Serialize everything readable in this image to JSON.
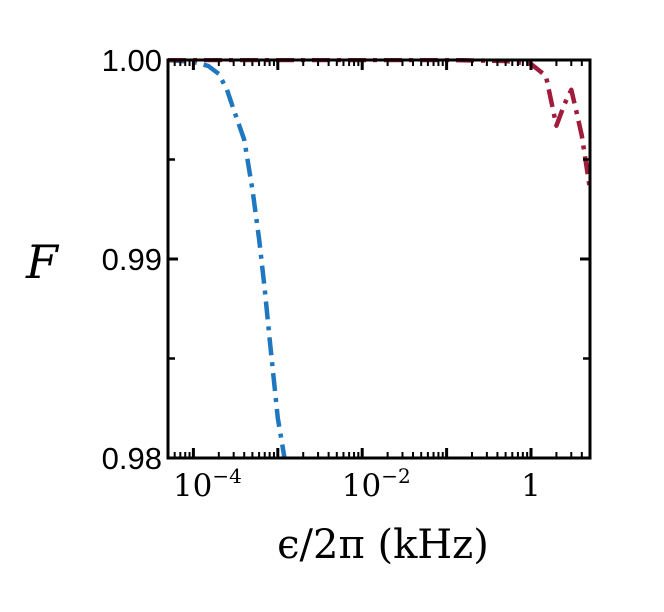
{
  "chart_data": {
    "type": "line",
    "xscale": "log",
    "xlim": [
      5e-05,
      5
    ],
    "ylim": [
      0.98,
      1.0
    ],
    "xlabel": "ϵ/2π (kHz)",
    "ylabel": "F",
    "grid": false,
    "x_ticks": [
      {
        "value": 0.0001,
        "base": "10",
        "exp": "−4"
      },
      {
        "value": 0.01,
        "base": "10",
        "exp": "−2"
      },
      {
        "value": 1,
        "base": "1",
        "exp": ""
      }
    ],
    "y_ticks": [
      {
        "value": 0.98,
        "label": "0.98"
      },
      {
        "value": 0.99,
        "label": "0.99"
      },
      {
        "value": 1.0,
        "label": "1.00"
      }
    ],
    "series": [
      {
        "color": "#1f77c0",
        "style": "dashdot",
        "x": [
          5e-05,
          0.0001,
          0.00015,
          0.0002,
          0.00025,
          0.0003,
          0.0004,
          0.0005,
          0.0006,
          0.0007,
          0.0008,
          0.001,
          0.0012
        ],
        "y": [
          1.0,
          0.9999,
          0.9997,
          0.9993,
          0.9985,
          0.9975,
          0.996,
          0.9935,
          0.991,
          0.9885,
          0.986,
          0.982,
          0.98
        ]
      },
      {
        "color": "#a01c3c",
        "style": "dashdot",
        "x": [
          5e-05,
          0.01,
          0.1,
          0.5,
          1.0,
          1.5,
          2.0,
          2.5,
          3.0,
          3.5,
          4.0,
          5.0
        ],
        "y": [
          1.0,
          1.0,
          1.0,
          0.99995,
          0.9998,
          0.9992,
          0.9967,
          0.9978,
          0.9985,
          0.9973,
          0.9962,
          0.9935
        ]
      }
    ]
  }
}
